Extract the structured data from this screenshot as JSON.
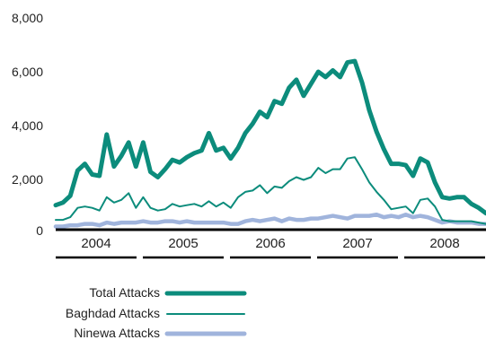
{
  "chart_data": {
    "type": "line",
    "title": "",
    "xlabel": "",
    "ylabel": "",
    "ylim": [
      0,
      8000
    ],
    "yticks": [
      "8,000",
      "6,000",
      "4,000",
      "2,000",
      "0"
    ],
    "ytick_values": [
      8000,
      6000,
      4000,
      2000,
      0
    ],
    "years": [
      "2004",
      "2005",
      "2006",
      "2007",
      "2008"
    ],
    "x_start": "2004-01",
    "grid": false,
    "legend_position": "bottom-left",
    "colors": {
      "total": "#0c8c7c",
      "baghdad": "#0c8c7c",
      "ninewa": "#a0b4dc",
      "axis": "#000000"
    },
    "series": [
      {
        "name": "Total Attacks",
        "key": "total",
        "values": [
          950,
          1050,
          1300,
          2250,
          2500,
          2100,
          2050,
          3600,
          2400,
          2800,
          3300,
          2400,
          3300,
          2200,
          2000,
          2300,
          2650,
          2550,
          2750,
          2900,
          3000,
          3650,
          3000,
          3100,
          2700,
          3100,
          3650,
          4000,
          4450,
          4250,
          4850,
          4750,
          5350,
          5650,
          5050,
          5500,
          5950,
          5750,
          6000,
          5750,
          6300,
          6350,
          5550,
          4500,
          3700,
          3050,
          2500,
          2500,
          2450,
          2050,
          2700,
          2550,
          1800,
          1250,
          1200,
          1250,
          1250,
          1000,
          850,
          650
        ]
      },
      {
        "name": "Baghdad Attacks",
        "key": "baghdad",
        "values": [
          400,
          400,
          500,
          850,
          900,
          850,
          750,
          1250,
          1050,
          1150,
          1400,
          850,
          1250,
          850,
          750,
          800,
          1000,
          900,
          950,
          1000,
          900,
          1100,
          900,
          1050,
          850,
          1250,
          1450,
          1500,
          1700,
          1400,
          1650,
          1600,
          1850,
          2000,
          1900,
          2000,
          2350,
          2150,
          2300,
          2300,
          2700,
          2750,
          2300,
          1800,
          1450,
          1150,
          800,
          850,
          900,
          650,
          1150,
          1200,
          900,
          400,
          350,
          350,
          350,
          350,
          300,
          250
        ]
      },
      {
        "name": "Ninewa Attacks",
        "key": "ninewa",
        "values": [
          150,
          150,
          200,
          200,
          250,
          250,
          200,
          300,
          250,
          300,
          300,
          300,
          350,
          300,
          300,
          350,
          350,
          300,
          350,
          300,
          300,
          300,
          300,
          300,
          250,
          250,
          350,
          400,
          350,
          400,
          450,
          350,
          450,
          400,
          400,
          450,
          450,
          500,
          550,
          500,
          450,
          550,
          550,
          550,
          600,
          500,
          550,
          500,
          600,
          500,
          550,
          500,
          400,
          300,
          350,
          300,
          300,
          300,
          250,
          250
        ]
      }
    ]
  }
}
